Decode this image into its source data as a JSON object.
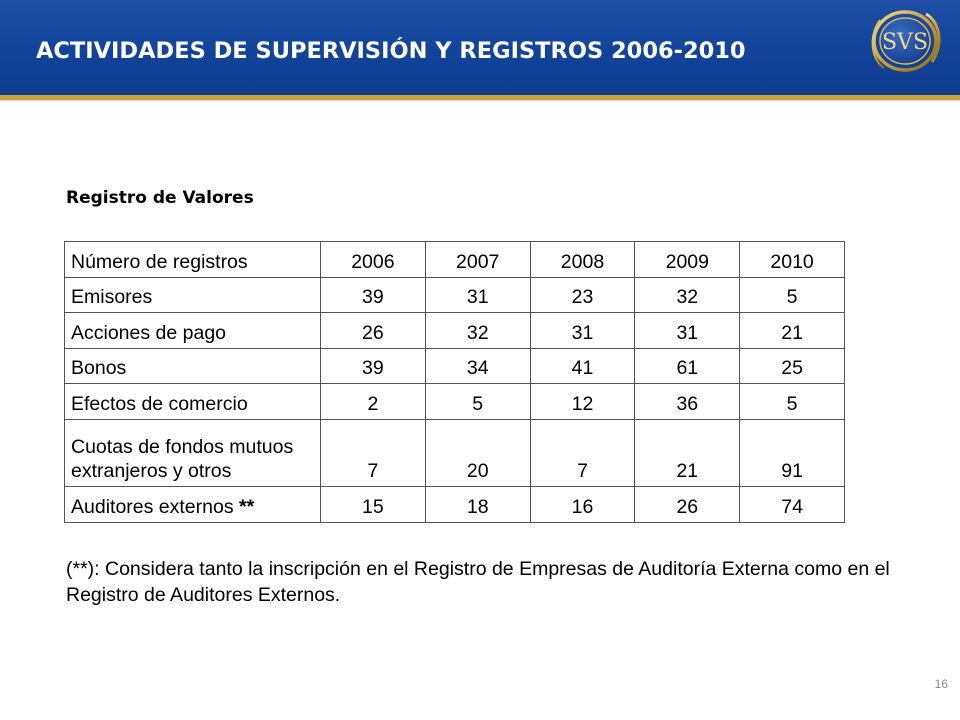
{
  "header": {
    "title": "ACTIVIDADES DE SUPERVISIÓN Y REGISTROS 2006-2010",
    "logo_text": "SVS"
  },
  "section": {
    "title": "Registro de Valores"
  },
  "table": {
    "header_label": "Número de registros",
    "years": [
      "2006",
      "2007",
      "2008",
      "2009",
      "2010"
    ],
    "rows": [
      {
        "label": "Emisores",
        "values": [
          "39",
          "31",
          "23",
          "32",
          "5"
        ]
      },
      {
        "label": "Acciones de pago",
        "values": [
          "26",
          "32",
          "31",
          "31",
          "21"
        ]
      },
      {
        "label": "Bonos",
        "values": [
          "39",
          "34",
          "41",
          "61",
          "25"
        ]
      },
      {
        "label": "Efectos de comercio",
        "values": [
          "2",
          "5",
          "12",
          "36",
          "5"
        ]
      },
      {
        "label": "Cuotas de fondos mutuos extranjeros y otros",
        "values": [
          "7",
          "20",
          "7",
          "21",
          "91"
        ]
      },
      {
        "label": "Auditores externos",
        "label_suffix": "**",
        "values": [
          "15",
          "18",
          "16",
          "26",
          "74"
        ]
      }
    ]
  },
  "footnote": {
    "marker": "(**)",
    "text": ": Considera tanto la inscripción en el Registro de Empresas de Auditoría Externa como en el Registro de Auditores Externos."
  },
  "page_number": "16",
  "colors": {
    "header_blue": "#12439a",
    "accent_gold": "#c9a23a"
  }
}
